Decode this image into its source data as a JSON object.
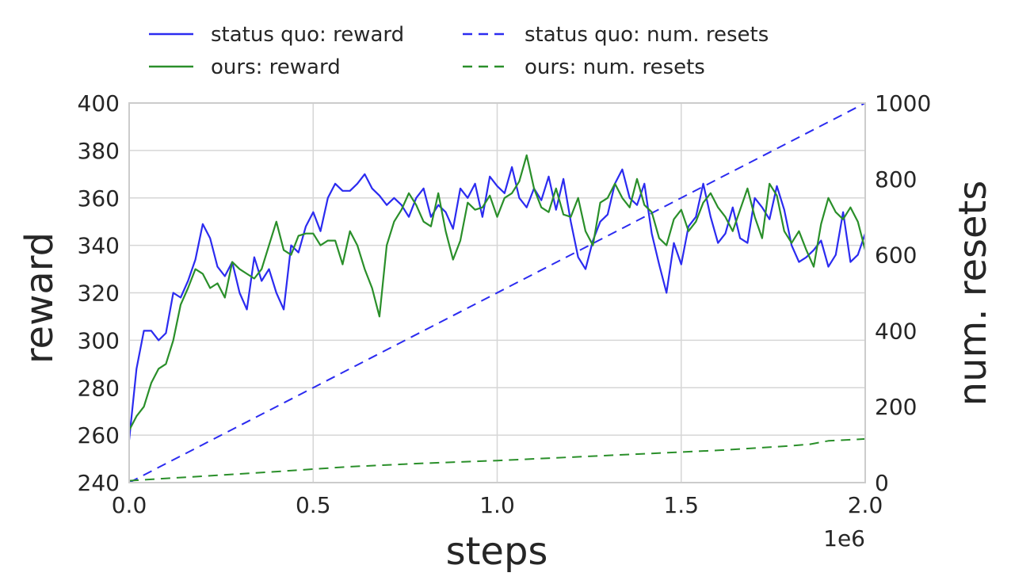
{
  "chart_data": {
    "type": "line",
    "xlabel": "steps",
    "ylabel": "reward",
    "y2label": "num. resets",
    "x_offset_label": "1e6",
    "xlim": [
      0,
      2000000
    ],
    "ylim": [
      240,
      400
    ],
    "y2lim": [
      0,
      1000
    ],
    "grid": true,
    "legend_placement": "top, above plot, two columns",
    "xticks": [
      0,
      500000,
      1000000,
      1500000,
      2000000
    ],
    "xtick_labels": [
      "0.0",
      "0.5",
      "1.0",
      "1.5",
      "2.0"
    ],
    "yticks": [
      240,
      260,
      280,
      300,
      320,
      340,
      360,
      380,
      400
    ],
    "ytick_labels": [
      "240",
      "260",
      "280",
      "300",
      "320",
      "340",
      "360",
      "380",
      "400"
    ],
    "y2ticks": [
      0,
      200,
      400,
      600,
      800,
      1000
    ],
    "y2tick_labels": [
      "0",
      "200",
      "400",
      "600",
      "800",
      "1000"
    ],
    "series": [
      {
        "name": "status quo: reward",
        "axis": "left",
        "style": "solid",
        "color": "#2b2bf0",
        "x": [
          0,
          20000,
          40000,
          60000,
          80000,
          100000,
          120000,
          140000,
          160000,
          180000,
          200000,
          220000,
          240000,
          260000,
          280000,
          300000,
          320000,
          340000,
          360000,
          380000,
          400000,
          420000,
          440000,
          460000,
          480000,
          500000,
          520000,
          540000,
          560000,
          580000,
          600000,
          620000,
          640000,
          660000,
          680000,
          700000,
          720000,
          740000,
          760000,
          780000,
          800000,
          820000,
          840000,
          860000,
          880000,
          900000,
          920000,
          940000,
          960000,
          980000,
          1000000,
          1020000,
          1040000,
          1060000,
          1080000,
          1100000,
          1120000,
          1140000,
          1160000,
          1180000,
          1200000,
          1220000,
          1240000,
          1260000,
          1280000,
          1300000,
          1320000,
          1340000,
          1360000,
          1380000,
          1400000,
          1420000,
          1440000,
          1460000,
          1480000,
          1500000,
          1520000,
          1540000,
          1560000,
          1580000,
          1600000,
          1620000,
          1640000,
          1660000,
          1680000,
          1700000,
          1720000,
          1740000,
          1760000,
          1780000,
          1800000,
          1820000,
          1840000,
          1860000,
          1880000,
          1900000,
          1920000,
          1940000,
          1960000,
          1980000,
          2000000
        ],
        "y": [
          258,
          288,
          304,
          304,
          300,
          303,
          320,
          318,
          325,
          334,
          349,
          343,
          331,
          327,
          333,
          320,
          313,
          335,
          325,
          330,
          320,
          313,
          340,
          337,
          348,
          354,
          346,
          360,
          366,
          363,
          363,
          366,
          370,
          364,
          361,
          357,
          360,
          357,
          352,
          360,
          364,
          352,
          357,
          354,
          347,
          364,
          360,
          366,
          352,
          369,
          365,
          362,
          373,
          360,
          356,
          364,
          359,
          369,
          355,
          368,
          350,
          335,
          330,
          342,
          350,
          353,
          366,
          372,
          360,
          357,
          366,
          345,
          332,
          320,
          341,
          332,
          348,
          352,
          366,
          352,
          341,
          345,
          356,
          343,
          341,
          360,
          356,
          351,
          365,
          355,
          340,
          333,
          335,
          338,
          342,
          331,
          336,
          354,
          333,
          336,
          345
        ]
      },
      {
        "name": "ours: reward",
        "axis": "left",
        "style": "solid",
        "color": "#2a8f2a",
        "x": [
          0,
          20000,
          40000,
          60000,
          80000,
          100000,
          120000,
          140000,
          160000,
          180000,
          200000,
          220000,
          240000,
          260000,
          280000,
          300000,
          320000,
          340000,
          360000,
          380000,
          400000,
          420000,
          440000,
          460000,
          480000,
          500000,
          520000,
          540000,
          560000,
          580000,
          600000,
          620000,
          640000,
          660000,
          680000,
          700000,
          720000,
          740000,
          760000,
          780000,
          800000,
          820000,
          840000,
          860000,
          880000,
          900000,
          920000,
          940000,
          960000,
          980000,
          1000000,
          1020000,
          1040000,
          1060000,
          1080000,
          1100000,
          1120000,
          1140000,
          1160000,
          1180000,
          1200000,
          1220000,
          1240000,
          1260000,
          1280000,
          1300000,
          1320000,
          1340000,
          1360000,
          1380000,
          1400000,
          1420000,
          1440000,
          1460000,
          1480000,
          1500000,
          1520000,
          1540000,
          1560000,
          1580000,
          1600000,
          1620000,
          1640000,
          1660000,
          1680000,
          1700000,
          1720000,
          1740000,
          1760000,
          1780000,
          1800000,
          1820000,
          1840000,
          1860000,
          1880000,
          1900000,
          1920000,
          1940000,
          1960000,
          1980000,
          2000000
        ],
        "y": [
          262,
          268,
          272,
          282,
          288,
          290,
          300,
          315,
          322,
          330,
          328,
          322,
          324,
          318,
          333,
          330,
          328,
          326,
          330,
          340,
          350,
          338,
          336,
          344,
          345,
          345,
          340,
          342,
          342,
          332,
          346,
          340,
          330,
          322,
          310,
          340,
          350,
          355,
          362,
          357,
          350,
          348,
          362,
          346,
          334,
          342,
          358,
          355,
          356,
          361,
          352,
          360,
          362,
          367,
          378,
          364,
          356,
          354,
          364,
          353,
          352,
          360,
          346,
          340,
          358,
          360,
          366,
          360,
          356,
          368,
          357,
          354,
          343,
          340,
          351,
          355,
          346,
          350,
          358,
          362,
          356,
          352,
          346,
          355,
          364,
          352,
          343,
          366,
          361,
          346,
          341,
          346,
          338,
          331,
          349,
          360,
          354,
          351,
          356,
          350,
          338
        ]
      },
      {
        "name": "status quo: num. resets",
        "axis": "right",
        "style": "dashed",
        "color": "#2b2bf0",
        "x": [
          0,
          2000000
        ],
        "y": [
          0,
          1000
        ]
      },
      {
        "name": "ours: num. resets",
        "axis": "right",
        "style": "dashed",
        "color": "#2a8f2a",
        "x": [
          0,
          200000,
          400000,
          600000,
          800000,
          1000000,
          1200000,
          1400000,
          1600000,
          1800000,
          1850000,
          1900000,
          2000000
        ],
        "y": [
          5,
          17,
          29,
          42,
          51,
          58,
          67,
          76,
          85,
          97,
          101,
          110,
          115
        ]
      }
    ]
  }
}
